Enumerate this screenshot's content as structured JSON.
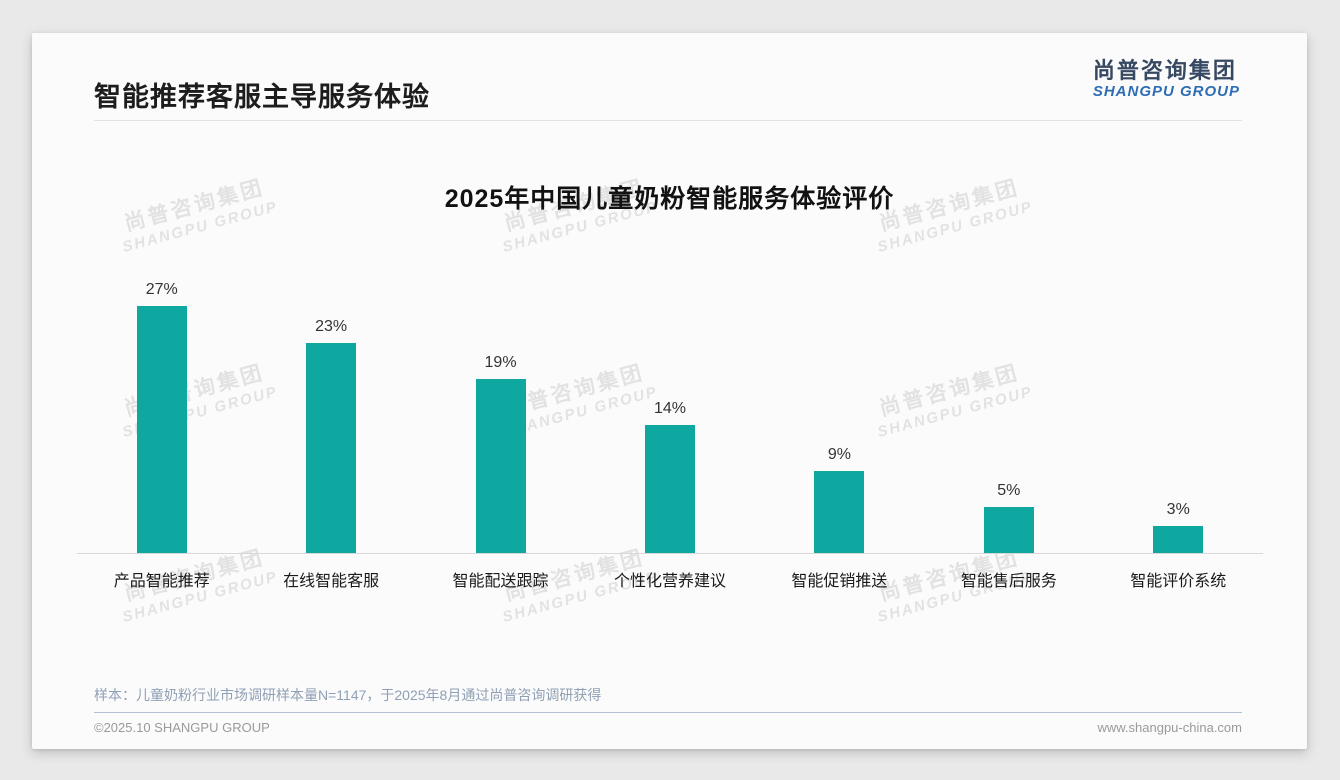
{
  "header": {
    "title": "智能推荐客服主导服务体验",
    "logo": {
      "chinese": "尚普咨询集团",
      "english": "SHANGPU GROUP"
    }
  },
  "watermark": {
    "line1": "尚普咨询集团",
    "line2": "SHANGPU GROUP"
  },
  "chart_data": {
    "type": "bar",
    "title": "2025年中国儿童奶粉智能服务体验评价",
    "categories": [
      "产品智能推荐",
      "在线智能客服",
      "智能配送跟踪",
      "个性化营养建议",
      "智能促销推送",
      "智能售后服务",
      "智能评价系统"
    ],
    "values": [
      27,
      23,
      19,
      14,
      9,
      5,
      3
    ],
    "value_labels": [
      "27%",
      "23%",
      "19%",
      "14%",
      "9%",
      "5%",
      "3%"
    ],
    "unit": "%",
    "ylim": [
      0,
      30
    ],
    "grid": false,
    "legend": false,
    "xlabel": "",
    "ylabel": "",
    "bar_color": "#0EA8A0"
  },
  "footer": {
    "sample_note": "样本：儿童奶粉行业市场调研样本量N=1147，于2025年8月通过尚普咨询调研获得",
    "copyright": "©2025.10 SHANGPU GROUP",
    "website": "www.shangpu-china.com"
  },
  "colors": {
    "bar_teal": "#0EA8A0",
    "logo_dark_navy": "#364862",
    "logo_blue": "#2E6DB4",
    "note_slate": "#8FA0B5"
  }
}
